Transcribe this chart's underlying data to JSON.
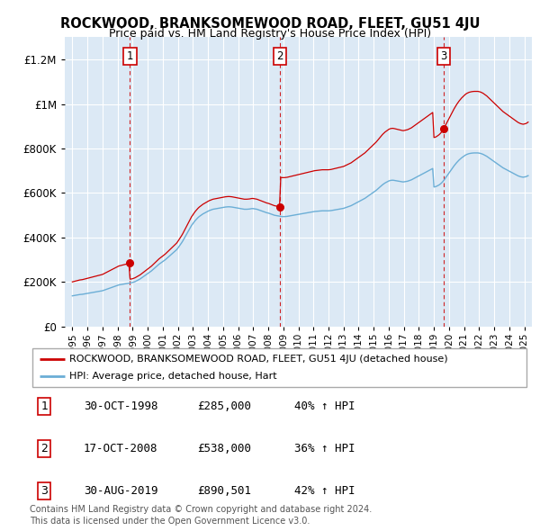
{
  "title": "ROCKWOOD, BRANKSOMEWOOD ROAD, FLEET, GU51 4JU",
  "subtitle": "Price paid vs. HM Land Registry's House Price Index (HPI)",
  "legend_line1": "ROCKWOOD, BRANKSOMEWOOD ROAD, FLEET, GU51 4JU (detached house)",
  "legend_line2": "HPI: Average price, detached house, Hart",
  "sale_labels": [
    {
      "num": 1,
      "date": "30-OCT-1998",
      "price": "£285,000",
      "pct": "40% ↑ HPI"
    },
    {
      "num": 2,
      "date": "17-OCT-2008",
      "price": "£538,000",
      "pct": "36% ↑ HPI"
    },
    {
      "num": 3,
      "date": "30-AUG-2019",
      "price": "£890,501",
      "pct": "42% ↑ HPI"
    }
  ],
  "footnote1": "Contains HM Land Registry data © Crown copyright and database right 2024.",
  "footnote2": "This data is licensed under the Open Government Licence v3.0.",
  "hpi_color": "#6baed6",
  "sale_color": "#cc0000",
  "background_color": "#dce9f5",
  "sale_marker_color": "#cc0000",
  "vline_color": "#cc0000",
  "ylim": [
    0,
    1300000
  ],
  "yticks": [
    0,
    200000,
    400000,
    600000,
    800000,
    1000000,
    1200000
  ],
  "xlim_start": 1994.5,
  "xlim_end": 2025.5,
  "sale_years": [
    1998.83,
    2008.79,
    2019.66
  ],
  "sale_prices": [
    285000,
    538000,
    890501
  ],
  "hpi_values": [
    138000,
    139000,
    140000,
    141000,
    142000,
    143000,
    144000,
    144500,
    145000,
    146000,
    147000,
    148000,
    149000,
    150000,
    151000,
    152000,
    153000,
    154000,
    155000,
    156000,
    157000,
    158000,
    159000,
    160000,
    161000,
    163000,
    165000,
    167000,
    169000,
    171000,
    173000,
    175000,
    177000,
    179000,
    181000,
    183000,
    185000,
    187000,
    188000,
    189000,
    190000,
    191000,
    192000,
    193000,
    194000,
    195000,
    196000,
    197000,
    198000,
    200000,
    202000,
    205000,
    208000,
    211000,
    214000,
    218000,
    222000,
    226000,
    230000,
    234000,
    238000,
    242000,
    246000,
    250000,
    255000,
    260000,
    265000,
    270000,
    275000,
    280000,
    284000,
    288000,
    292000,
    296000,
    300000,
    305000,
    310000,
    315000,
    320000,
    325000,
    330000,
    335000,
    340000,
    345000,
    352000,
    360000,
    368000,
    376000,
    385000,
    395000,
    405000,
    415000,
    425000,
    435000,
    445000,
    455000,
    462000,
    470000,
    477000,
    483000,
    489000,
    494000,
    498000,
    502000,
    506000,
    509000,
    512000,
    515000,
    518000,
    521000,
    523000,
    525000,
    527000,
    528000,
    529000,
    530000,
    531000,
    532000,
    533000,
    534000,
    535000,
    536000,
    537000,
    537500,
    538000,
    538000,
    537500,
    537000,
    536000,
    535000,
    534000,
    533000,
    532000,
    531000,
    530000,
    529000,
    528000,
    527000,
    527000,
    527000,
    527500,
    528000,
    529000,
    530000,
    530000,
    529000,
    528000,
    527000,
    525000,
    523000,
    521000,
    519000,
    517000,
    515000,
    513000,
    511000,
    510000,
    508000,
    506000,
    504000,
    502000,
    500000,
    499000,
    498000,
    497000,
    496000,
    495000,
    494000,
    494000,
    494000,
    494500,
    495000,
    496000,
    497000,
    498000,
    499000,
    500000,
    501000,
    502000,
    503000,
    504000,
    505000,
    506000,
    507000,
    508000,
    509000,
    510000,
    511000,
    512000,
    513000,
    514000,
    515000,
    516000,
    517000,
    517500,
    518000,
    518500,
    519000,
    519500,
    520000,
    520000,
    520000,
    520000,
    520000,
    520000,
    520500,
    521000,
    522000,
    523000,
    524000,
    525000,
    526000,
    527000,
    528000,
    529000,
    530000,
    531000,
    533000,
    535000,
    537000,
    539000,
    541000,
    543000,
    546000,
    549000,
    552000,
    555000,
    558000,
    561000,
    564000,
    567000,
    570000,
    573000,
    576000,
    580000,
    584000,
    588000,
    592000,
    596000,
    600000,
    604000,
    608000,
    612000,
    617000,
    622000,
    627000,
    632000,
    637000,
    641000,
    645000,
    648000,
    651000,
    654000,
    656000,
    657000,
    657500,
    657000,
    656000,
    655000,
    654000,
    653000,
    652000,
    651000,
    650000,
    650000,
    651000,
    652000,
    653000,
    655000,
    657000,
    659000,
    662000,
    665000,
    668000,
    671000,
    674000,
    677000,
    680000,
    683000,
    686000,
    689000,
    692000,
    695000,
    698000,
    701000,
    704000,
    707000,
    710000,
    627000,
    628000,
    630000,
    633000,
    636000,
    640000,
    645000,
    651000,
    658000,
    666000,
    674000,
    682000,
    690000,
    698000,
    706000,
    714000,
    722000,
    729000,
    736000,
    742000,
    748000,
    753000,
    758000,
    762000,
    766000,
    770000,
    773000,
    775000,
    777000,
    778000,
    779000,
    779500,
    780000,
    780000,
    780000,
    780000,
    779000,
    778000,
    776000,
    774000,
    771000,
    768000,
    765000,
    761000,
    757000,
    753000,
    749000,
    745000,
    741000,
    737000,
    733000,
    729000,
    725000,
    721000,
    717000,
    713000,
    710000,
    707000,
    704000,
    701000,
    698000,
    695000,
    692000,
    689000,
    686000,
    683000,
    680000,
    677000,
    675000,
    673000,
    672000,
    671000,
    672000,
    673000,
    675000,
    678000
  ]
}
